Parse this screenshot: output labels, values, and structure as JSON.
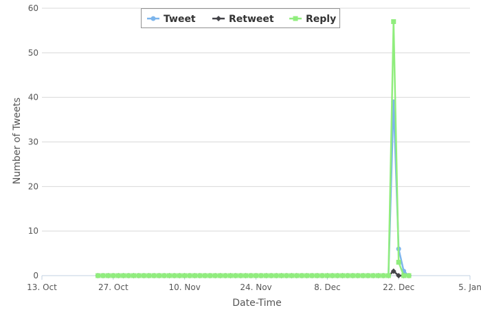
{
  "chart_data": {
    "type": "line",
    "title": "",
    "xlabel": "Date-Time",
    "ylabel": "Number of Tweets",
    "x_tick_labels": [
      "13. Oct",
      "27. Oct",
      "10. Nov",
      "24. Nov",
      "8. Dec",
      "22. Dec",
      "5. Jan"
    ],
    "y_tick_labels": [
      "0",
      "10",
      "20",
      "30",
      "40",
      "50",
      "60"
    ],
    "xlim": [
      "2014-10-13",
      "2015-01-05"
    ],
    "ylim": [
      0,
      60
    ],
    "grid": "horizontal",
    "legend_position": "top-center",
    "daily_dates": {
      "start": "2014-10-24",
      "end": "2014-12-20",
      "value": 0
    },
    "series": [
      {
        "name": "Tweet",
        "color": "#7cb5ec",
        "marker": "circle",
        "points": [
          [
            "2014-12-21",
            39
          ],
          [
            "2014-12-22",
            6
          ],
          [
            "2014-12-23",
            1
          ],
          [
            "2014-12-24",
            0
          ]
        ]
      },
      {
        "name": "Retweet",
        "color": "#434348",
        "marker": "diamond",
        "points": [
          [
            "2014-12-21",
            1
          ],
          [
            "2014-12-22",
            0
          ],
          [
            "2014-12-23",
            0
          ],
          [
            "2014-12-24",
            0
          ]
        ]
      },
      {
        "name": "Reply",
        "color": "#90ed7d",
        "marker": "square",
        "points": [
          [
            "2014-12-21",
            57
          ],
          [
            "2014-12-22",
            3
          ],
          [
            "2014-12-23",
            0
          ],
          [
            "2014-12-24",
            0
          ]
        ]
      }
    ]
  }
}
